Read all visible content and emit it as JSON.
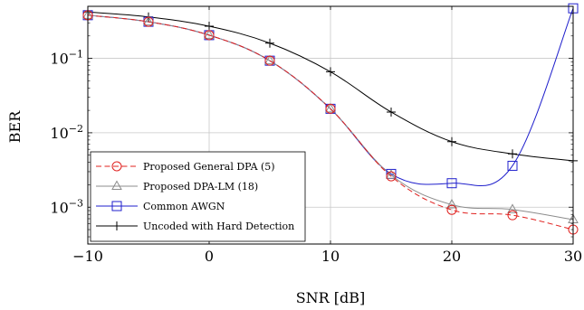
{
  "chart_data": {
    "type": "line",
    "xlabel": "SNR [dB]",
    "ylabel": "BER",
    "xlim": [
      -10,
      30
    ],
    "ylim": [
      0.00032,
      0.5
    ],
    "yscale": "log",
    "grid": true,
    "legend_position": "bottom-left",
    "x_ticks": [
      -10,
      0,
      10,
      20,
      30
    ],
    "x_tick_labels": [
      "−10",
      "0",
      "10",
      "20",
      "30"
    ],
    "y_ticks": [
      {
        "value": 0.1,
        "base": "10",
        "exp": "−1"
      },
      {
        "value": 0.01,
        "base": "10",
        "exp": "−2"
      },
      {
        "value": 0.001,
        "base": "10",
        "exp": "−3"
      }
    ],
    "series": [
      {
        "name": "Proposed General DPA (5)",
        "color": "#e0201e",
        "dash": "dashed",
        "marker": "circle",
        "x": [
          -10,
          -5,
          0,
          5,
          10,
          15,
          20,
          25,
          30
        ],
        "y": [
          0.38,
          0.31,
          0.205,
          0.093,
          0.021,
          0.0026,
          0.00092,
          0.00078,
          0.0005
        ]
      },
      {
        "name": "Proposed DPA-LM (18)",
        "color": "#8c8c8c",
        "dash": "solid",
        "marker": "triangle",
        "x": [
          -10,
          -5,
          0,
          5,
          10,
          15,
          20,
          25,
          30
        ],
        "y": [
          0.38,
          0.31,
          0.205,
          0.093,
          0.021,
          0.0027,
          0.00108,
          0.00093,
          0.00068
        ]
      },
      {
        "name": "Common AWGN",
        "color": "#1f1fcc",
        "dash": "solid",
        "marker": "square",
        "x": [
          -10,
          -5,
          0,
          5,
          10,
          15,
          20,
          25,
          30
        ],
        "y": [
          0.38,
          0.31,
          0.205,
          0.093,
          0.021,
          0.0028,
          0.0021,
          0.0036,
          0.47
        ]
      },
      {
        "name": "Uncoded with Hard Detection",
        "color": "#000000",
        "dash": "solid",
        "marker": "plus",
        "x": [
          -10,
          -5,
          0,
          5,
          10,
          15,
          20,
          25,
          30
        ],
        "y": [
          0.42,
          0.36,
          0.27,
          0.16,
          0.066,
          0.019,
          0.0076,
          0.0052,
          0.0042
        ]
      }
    ]
  }
}
